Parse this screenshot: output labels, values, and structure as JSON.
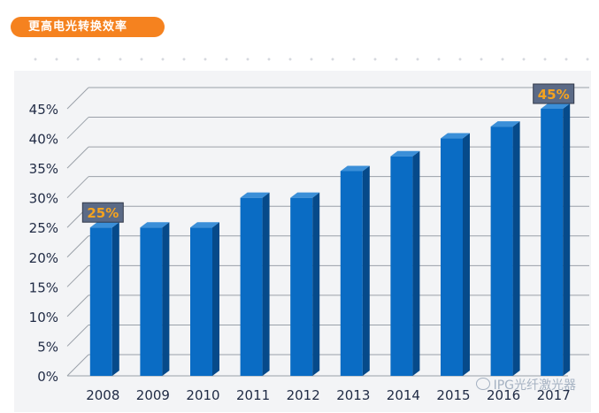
{
  "header": {
    "title": "更高电光转换效率"
  },
  "watermark": {
    "text": "IPG光纤激光器",
    "icon": "wechat-icon"
  },
  "chart_data": {
    "type": "bar",
    "title": "更高电光转换效率",
    "xlabel": "",
    "ylabel": "",
    "categories": [
      "2008",
      "2009",
      "2010",
      "2011",
      "2012",
      "2013",
      "2014",
      "2015",
      "2016",
      "2017"
    ],
    "values": [
      25,
      25,
      25,
      30,
      30,
      34.5,
      37,
      40,
      42,
      45
    ],
    "ylim": [
      0,
      45
    ],
    "yticks": [
      "0%",
      "5%",
      "10%",
      "15%",
      "20%",
      "25%",
      "30%",
      "35%",
      "40%",
      "45%"
    ],
    "annotations": [
      {
        "category": "2008",
        "text": "25%"
      },
      {
        "category": "2017",
        "text": "45%"
      }
    ],
    "grid": true,
    "colors": {
      "bar_front": "#0a6cc4",
      "bar_side": "#064a8a",
      "bar_top": "#3b8fd8",
      "label_text": "#f5a31f",
      "label_bg": "#5b6a86"
    }
  }
}
